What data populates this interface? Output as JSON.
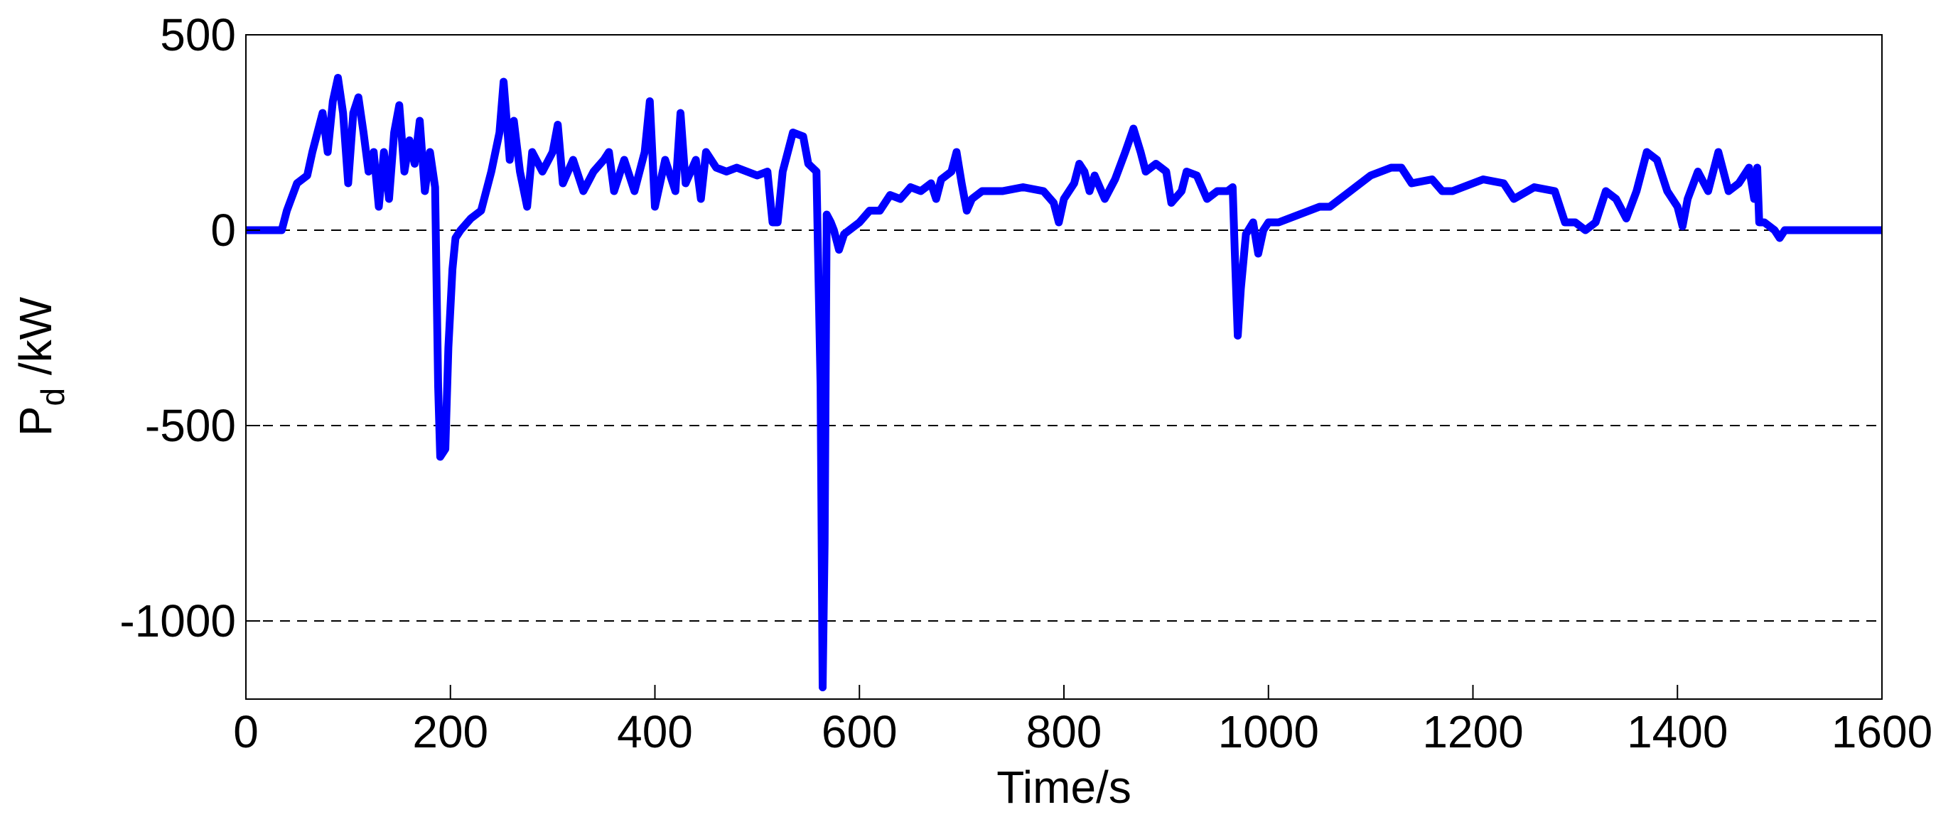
{
  "chart_data": {
    "type": "line",
    "xlabel": "Time/s",
    "ylabel": {
      "main": "P",
      "sub": "d",
      "unit": " /kW"
    },
    "xlim": [
      0,
      1600
    ],
    "xticks": [
      0,
      200,
      400,
      600,
      800,
      1000,
      1200,
      1400,
      1600
    ],
    "ylim": [
      -1200,
      500
    ],
    "yticks": [
      -1000,
      -500,
      0,
      500
    ],
    "grid": true,
    "series": [
      {
        "color": "#0000ff",
        "x": [
          0,
          35,
          40,
          50,
          60,
          65,
          75,
          80,
          85,
          90,
          95,
          100,
          105,
          110,
          115,
          120,
          125,
          130,
          135,
          140,
          145,
          150,
          155,
          160,
          165,
          170,
          175,
          180,
          185,
          188,
          190,
          195,
          198,
          202,
          205,
          210,
          220,
          230,
          240,
          248,
          252,
          258,
          262,
          268,
          275,
          280,
          290,
          300,
          305,
          310,
          320,
          330,
          340,
          350,
          355,
          360,
          370,
          380,
          390,
          395,
          400,
          410,
          420,
          425,
          430,
          440,
          445,
          450,
          460,
          470,
          480,
          490,
          500,
          510,
          515,
          520,
          525,
          530,
          535,
          545,
          550,
          558,
          562,
          564,
          566,
          568,
          572,
          575,
          580,
          585,
          590,
          600,
          610,
          620,
          630,
          640,
          650,
          660,
          670,
          675,
          680,
          690,
          695,
          700,
          705,
          710,
          720,
          730,
          740,
          760,
          780,
          790,
          795,
          800,
          810,
          815,
          820,
          825,
          830,
          840,
          850,
          860,
          868,
          875,
          880,
          890,
          900,
          905,
          915,
          920,
          930,
          940,
          950,
          960,
          965,
          967,
          970,
          973,
          978,
          985,
          990,
          995,
          1000,
          1010,
          1020,
          1040,
          1050,
          1060,
          1080,
          1100,
          1110,
          1120,
          1130,
          1140,
          1160,
          1170,
          1180,
          1200,
          1210,
          1230,
          1240,
          1260,
          1280,
          1290,
          1300,
          1310,
          1320,
          1330,
          1340,
          1350,
          1360,
          1370,
          1380,
          1390,
          1400,
          1405,
          1410,
          1420,
          1430,
          1440,
          1450,
          1460,
          1470,
          1475,
          1478,
          1480,
          1485,
          1495,
          1500,
          1505,
          1510,
          1600
        ],
        "values": [
          0,
          0,
          50,
          120,
          140,
          200,
          300,
          200,
          330,
          390,
          300,
          120,
          300,
          340,
          250,
          150,
          200,
          60,
          200,
          80,
          250,
          320,
          150,
          230,
          170,
          280,
          100,
          200,
          110,
          -400,
          -580,
          -560,
          -300,
          -100,
          -20,
          0,
          30,
          50,
          150,
          250,
          380,
          180,
          280,
          150,
          60,
          200,
          150,
          200,
          270,
          120,
          180,
          100,
          150,
          180,
          200,
          100,
          180,
          100,
          200,
          330,
          60,
          180,
          100,
          300,
          120,
          180,
          80,
          200,
          160,
          150,
          160,
          150,
          140,
          150,
          20,
          20,
          150,
          200,
          250,
          240,
          170,
          150,
          -400,
          -1170,
          -800,
          40,
          20,
          0,
          -50,
          -10,
          0,
          20,
          50,
          50,
          90,
          80,
          110,
          100,
          120,
          80,
          130,
          150,
          200,
          120,
          50,
          80,
          100,
          100,
          100,
          110,
          100,
          70,
          20,
          80,
          120,
          170,
          150,
          100,
          140,
          80,
          130,
          200,
          260,
          200,
          150,
          170,
          150,
          70,
          100,
          150,
          140,
          80,
          100,
          100,
          110,
          -50,
          -270,
          -150,
          -10,
          20,
          -60,
          0,
          20,
          20,
          30,
          50,
          60,
          60,
          100,
          140,
          150,
          160,
          160,
          120,
          130,
          100,
          100,
          120,
          130,
          120,
          80,
          110,
          100,
          20,
          20,
          0,
          20,
          100,
          80,
          30,
          100,
          200,
          180,
          100,
          60,
          10,
          80,
          150,
          100,
          200,
          100,
          120,
          160,
          80,
          160,
          20,
          20,
          0,
          -20,
          0,
          0,
          0
        ]
      }
    ]
  }
}
